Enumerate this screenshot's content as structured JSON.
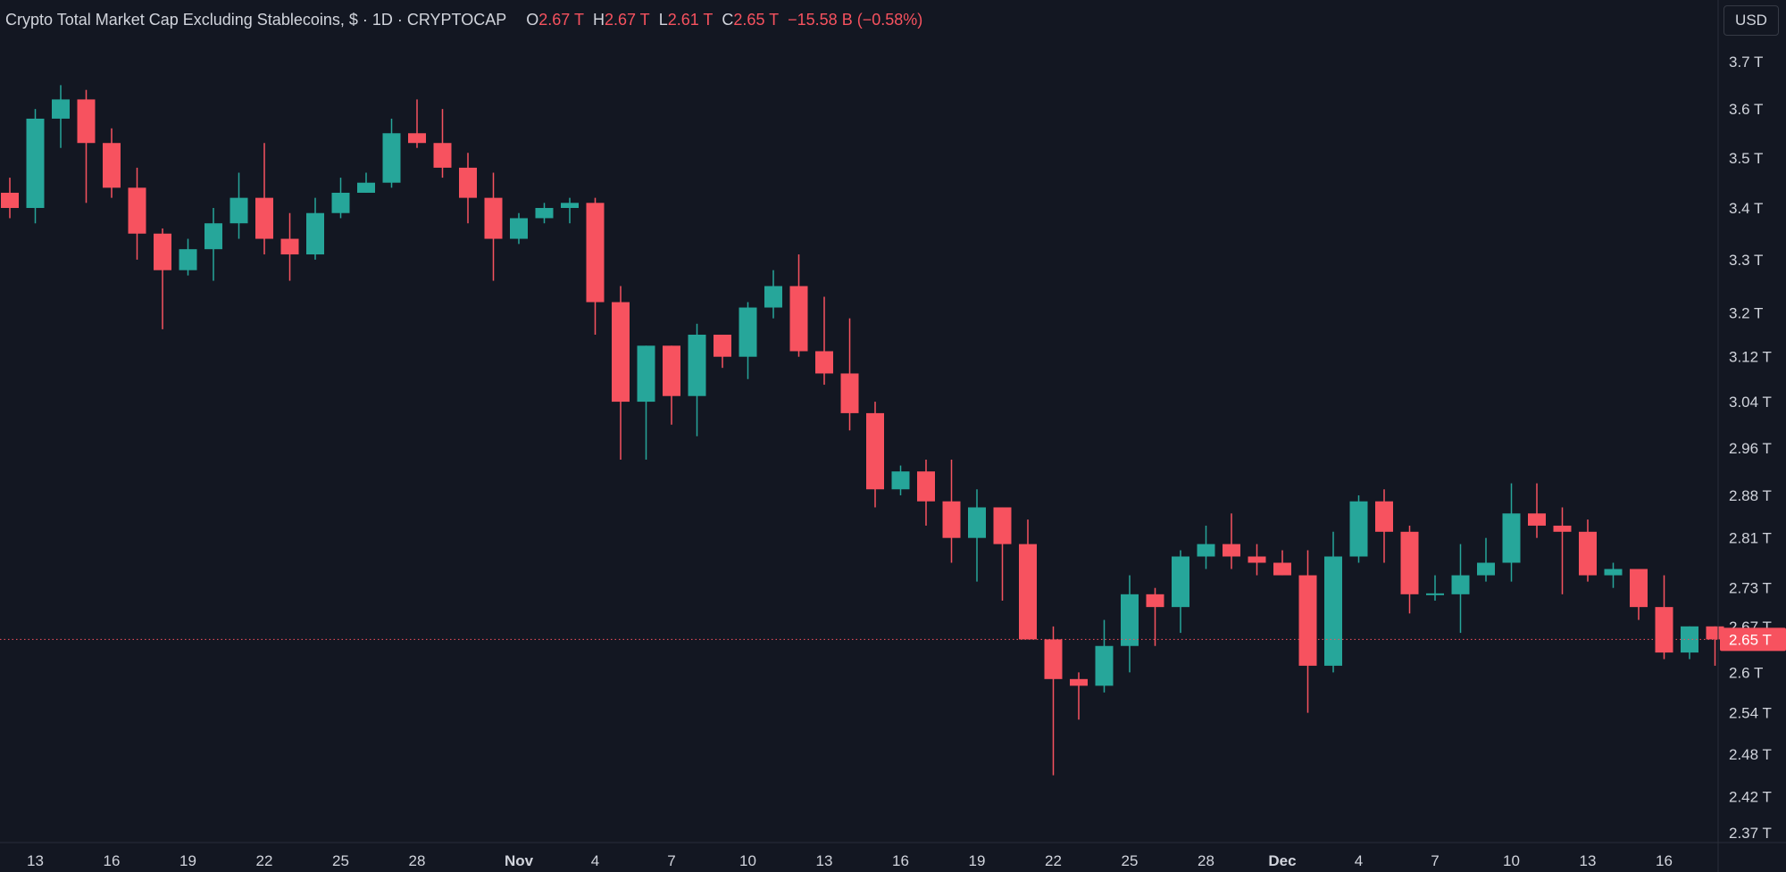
{
  "legend": {
    "symbol": "Crypto Total Market Cap Excluding Stablecoins, $ · 1D · CRYPTOCAP",
    "open_label": "O",
    "open_value": "2.67 T",
    "high_label": "H",
    "high_value": "2.67 T",
    "low_label": "L",
    "low_value": "2.61 T",
    "close_label": "C",
    "close_value": "2.65 T",
    "change": "−15.58 B (−0.58%)"
  },
  "currency": "USD",
  "colors": {
    "up": "#26a69a",
    "down": "#f7525f",
    "background": "#131722",
    "text": "#d1d4dc"
  },
  "chart_data": {
    "type": "candlestick",
    "price_unit": "T",
    "y_ticks": [
      2.37,
      2.42,
      2.48,
      2.54,
      2.6,
      2.67,
      2.73,
      2.81,
      2.88,
      2.96,
      3.04,
      3.12,
      3.2,
      3.3,
      3.4,
      3.5,
      3.6,
      3.7
    ],
    "y_tick_labels": [
      "2.37 T",
      "2.42 T",
      "2.48 T",
      "2.54 T",
      "2.6 T",
      "2.67 T",
      "2.73 T",
      "2.81 T",
      "2.88 T",
      "2.96 T",
      "3.04 T",
      "3.12 T",
      "3.2 T",
      "3.3 T",
      "3.4 T",
      "3.5 T",
      "3.6 T",
      "3.7 T"
    ],
    "x_ticks": [
      {
        "label": "13",
        "index": 1,
        "bold": false
      },
      {
        "label": "16",
        "index": 4,
        "bold": false
      },
      {
        "label": "19",
        "index": 7,
        "bold": false
      },
      {
        "label": "22",
        "index": 10,
        "bold": false
      },
      {
        "label": "25",
        "index": 13,
        "bold": false
      },
      {
        "label": "28",
        "index": 16,
        "bold": false
      },
      {
        "label": "Nov",
        "index": 20,
        "bold": true
      },
      {
        "label": "4",
        "index": 23,
        "bold": false
      },
      {
        "label": "7",
        "index": 26,
        "bold": false
      },
      {
        "label": "10",
        "index": 29,
        "bold": false
      },
      {
        "label": "13",
        "index": 32,
        "bold": false
      },
      {
        "label": "16",
        "index": 35,
        "bold": false
      },
      {
        "label": "19",
        "index": 38,
        "bold": false
      },
      {
        "label": "22",
        "index": 41,
        "bold": false
      },
      {
        "label": "25",
        "index": 44,
        "bold": false
      },
      {
        "label": "28",
        "index": 47,
        "bold": false
      },
      {
        "label": "Dec",
        "index": 50,
        "bold": true
      },
      {
        "label": "4",
        "index": 53,
        "bold": false
      },
      {
        "label": "7",
        "index": 56,
        "bold": false
      },
      {
        "label": "10",
        "index": 59,
        "bold": false
      },
      {
        "label": "13",
        "index": 62,
        "bold": false
      },
      {
        "label": "16",
        "index": 65,
        "bold": false
      }
    ],
    "last_price": 2.65,
    "last_price_label": "2.65 T",
    "candles": [
      {
        "o": 3.43,
        "h": 3.46,
        "l": 3.38,
        "c": 3.4
      },
      {
        "o": 3.4,
        "h": 3.6,
        "l": 3.37,
        "c": 3.58
      },
      {
        "o": 3.58,
        "h": 3.65,
        "l": 3.52,
        "c": 3.62
      },
      {
        "o": 3.62,
        "h": 3.64,
        "l": 3.41,
        "c": 3.53
      },
      {
        "o": 3.53,
        "h": 3.56,
        "l": 3.42,
        "c": 3.44
      },
      {
        "o": 3.44,
        "h": 3.48,
        "l": 3.3,
        "c": 3.35
      },
      {
        "o": 3.35,
        "h": 3.36,
        "l": 3.17,
        "c": 3.28
      },
      {
        "o": 3.28,
        "h": 3.34,
        "l": 3.27,
        "c": 3.32
      },
      {
        "o": 3.32,
        "h": 3.4,
        "l": 3.26,
        "c": 3.37
      },
      {
        "o": 3.37,
        "h": 3.47,
        "l": 3.34,
        "c": 3.42
      },
      {
        "o": 3.42,
        "h": 3.53,
        "l": 3.31,
        "c": 3.34
      },
      {
        "o": 3.34,
        "h": 3.39,
        "l": 3.26,
        "c": 3.31
      },
      {
        "o": 3.31,
        "h": 3.42,
        "l": 3.3,
        "c": 3.39
      },
      {
        "o": 3.39,
        "h": 3.46,
        "l": 3.38,
        "c": 3.43
      },
      {
        "o": 3.43,
        "h": 3.47,
        "l": 3.43,
        "c": 3.45
      },
      {
        "o": 3.45,
        "h": 3.58,
        "l": 3.44,
        "c": 3.55
      },
      {
        "o": 3.55,
        "h": 3.62,
        "l": 3.52,
        "c": 3.53
      },
      {
        "o": 3.53,
        "h": 3.6,
        "l": 3.46,
        "c": 3.48
      },
      {
        "o": 3.48,
        "h": 3.51,
        "l": 3.37,
        "c": 3.42
      },
      {
        "o": 3.42,
        "h": 3.47,
        "l": 3.26,
        "c": 3.34
      },
      {
        "o": 3.34,
        "h": 3.39,
        "l": 3.33,
        "c": 3.38
      },
      {
        "o": 3.38,
        "h": 3.41,
        "l": 3.37,
        "c": 3.4
      },
      {
        "o": 3.4,
        "h": 3.42,
        "l": 3.37,
        "c": 3.41
      },
      {
        "o": 3.41,
        "h": 3.42,
        "l": 3.16,
        "c": 3.22
      },
      {
        "o": 3.22,
        "h": 3.25,
        "l": 2.94,
        "c": 3.04
      },
      {
        "o": 3.04,
        "h": 3.14,
        "l": 2.94,
        "c": 3.14
      },
      {
        "o": 3.14,
        "h": 3.14,
        "l": 3.0,
        "c": 3.05
      },
      {
        "o": 3.05,
        "h": 3.18,
        "l": 2.98,
        "c": 3.16
      },
      {
        "o": 3.16,
        "h": 3.16,
        "l": 3.1,
        "c": 3.12
      },
      {
        "o": 3.12,
        "h": 3.22,
        "l": 3.08,
        "c": 3.21
      },
      {
        "o": 3.21,
        "h": 3.28,
        "l": 3.19,
        "c": 3.25
      },
      {
        "o": 3.25,
        "h": 3.31,
        "l": 3.12,
        "c": 3.13
      },
      {
        "o": 3.13,
        "h": 3.23,
        "l": 3.07,
        "c": 3.09
      },
      {
        "o": 3.09,
        "h": 3.19,
        "l": 2.99,
        "c": 3.02
      },
      {
        "o": 3.02,
        "h": 3.04,
        "l": 2.86,
        "c": 2.89
      },
      {
        "o": 2.89,
        "h": 2.93,
        "l": 2.88,
        "c": 2.92
      },
      {
        "o": 2.92,
        "h": 2.94,
        "l": 2.83,
        "c": 2.87
      },
      {
        "o": 2.87,
        "h": 2.94,
        "l": 2.77,
        "c": 2.81
      },
      {
        "o": 2.81,
        "h": 2.89,
        "l": 2.74,
        "c": 2.86
      },
      {
        "o": 2.86,
        "h": 2.86,
        "l": 2.71,
        "c": 2.8
      },
      {
        "o": 2.8,
        "h": 2.84,
        "l": 2.65,
        "c": 2.65
      },
      {
        "o": 2.65,
        "h": 2.67,
        "l": 2.45,
        "c": 2.59
      },
      {
        "o": 2.59,
        "h": 2.6,
        "l": 2.53,
        "c": 2.58
      },
      {
        "o": 2.58,
        "h": 2.68,
        "l": 2.57,
        "c": 2.64
      },
      {
        "o": 2.64,
        "h": 2.75,
        "l": 2.6,
        "c": 2.72
      },
      {
        "o": 2.72,
        "h": 2.73,
        "l": 2.64,
        "c": 2.7
      },
      {
        "o": 2.7,
        "h": 2.79,
        "l": 2.66,
        "c": 2.78
      },
      {
        "o": 2.78,
        "h": 2.83,
        "l": 2.76,
        "c": 2.8
      },
      {
        "o": 2.8,
        "h": 2.85,
        "l": 2.76,
        "c": 2.78
      },
      {
        "o": 2.78,
        "h": 2.8,
        "l": 2.75,
        "c": 2.77
      },
      {
        "o": 2.77,
        "h": 2.79,
        "l": 2.75,
        "c": 2.75
      },
      {
        "o": 2.75,
        "h": 2.79,
        "l": 2.54,
        "c": 2.61
      },
      {
        "o": 2.61,
        "h": 2.82,
        "l": 2.6,
        "c": 2.78
      },
      {
        "o": 2.78,
        "h": 2.88,
        "l": 2.77,
        "c": 2.87
      },
      {
        "o": 2.87,
        "h": 2.89,
        "l": 2.77,
        "c": 2.82
      },
      {
        "o": 2.82,
        "h": 2.83,
        "l": 2.69,
        "c": 2.72
      },
      {
        "o": 2.72,
        "h": 2.75,
        "l": 2.71,
        "c": 2.72
      },
      {
        "o": 2.72,
        "h": 2.8,
        "l": 2.66,
        "c": 2.75
      },
      {
        "o": 2.75,
        "h": 2.81,
        "l": 2.74,
        "c": 2.77
      },
      {
        "o": 2.77,
        "h": 2.9,
        "l": 2.74,
        "c": 2.85
      },
      {
        "o": 2.85,
        "h": 2.9,
        "l": 2.81,
        "c": 2.83
      },
      {
        "o": 2.83,
        "h": 2.86,
        "l": 2.72,
        "c": 2.82
      },
      {
        "o": 2.82,
        "h": 2.84,
        "l": 2.74,
        "c": 2.75
      },
      {
        "o": 2.75,
        "h": 2.77,
        "l": 2.73,
        "c": 2.76
      },
      {
        "o": 2.76,
        "h": 2.76,
        "l": 2.68,
        "c": 2.7
      },
      {
        "o": 2.7,
        "h": 2.75,
        "l": 2.62,
        "c": 2.63
      },
      {
        "o": 2.63,
        "h": 2.67,
        "l": 2.62,
        "c": 2.67
      },
      {
        "o": 2.67,
        "h": 2.67,
        "l": 2.61,
        "c": 2.65
      }
    ]
  }
}
